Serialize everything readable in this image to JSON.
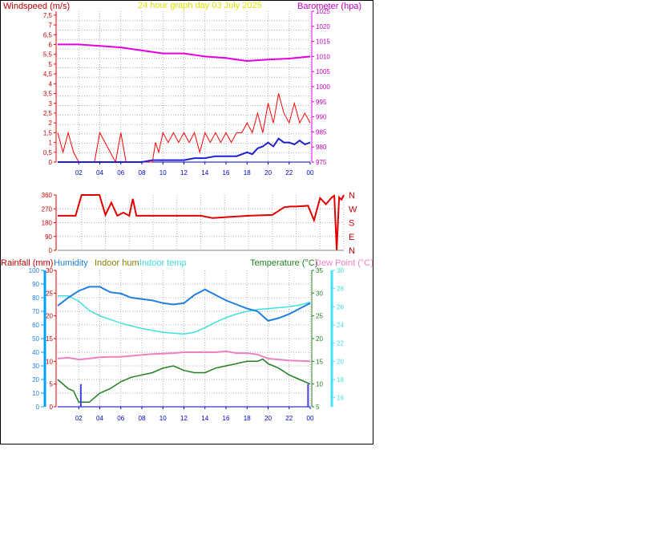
{
  "header": {
    "windspeed_label": "Windspeed (m/s)",
    "title": "24 hour graph day   03 July 2025",
    "barometer_label": "Barometer (hpa)"
  },
  "colors": {
    "wind": "#ff0000",
    "gust": "#ff0000",
    "avgwind": "#2020d0",
    "baro": "#e000e0",
    "title": "#e0e000",
    "direction": "#e00000",
    "humidity": "#2080e0",
    "indoor_hum_label": "#808000",
    "indoor_temp": "#40e0e0",
    "temperature": "#208020",
    "dewpoint": "#f080c0",
    "rain_axis": "#e00000",
    "hum_axis": "#00a0ff",
    "temp_axis": "#208020",
    "dew_axis": "#40e0ff",
    "xaxis": "#0000c0"
  },
  "lower_labels": {
    "rainfall": "Rainfall (mm)",
    "humidity": "Humidity",
    "indoor_hum": "Indoor hum",
    "indoor_temp": "Indoor temp",
    "temperature": "Temperature (°C)",
    "dewpoint": "Dew Point (°C)"
  },
  "chart_data": [
    {
      "type": "line",
      "x_ticks": [
        "02",
        "04",
        "06",
        "08",
        "10",
        "12",
        "14",
        "16",
        "18",
        "20",
        "22",
        "00"
      ],
      "y_left_ticks": [
        "0",
        "0,5",
        "1",
        "1,5",
        "2",
        "2,5",
        "3",
        "3,5",
        "4",
        "4,5",
        "5",
        "5,5",
        "6",
        "6,5",
        "7",
        "7,5"
      ],
      "y_left_range": [
        0,
        7.7
      ],
      "y_right_ticks": [
        "975",
        "980",
        "985",
        "990",
        "995",
        "1000",
        "1005",
        "1010",
        "1015",
        "1020",
        "1025"
      ],
      "y_right_range": [
        975,
        1025
      ],
      "x_range": [
        0,
        24
      ],
      "series": [
        {
          "key": "gust",
          "x": [
            0,
            0.5,
            1,
            1.5,
            2,
            3.5,
            4,
            4.5,
            5,
            5.5,
            6,
            6.5,
            7,
            8,
            9,
            9.3,
            9.6,
            10,
            10.5,
            11,
            11.5,
            12,
            12.5,
            13,
            13.5,
            14,
            14.5,
            15,
            15.5,
            16,
            16.5,
            17,
            17.5,
            18,
            18.5,
            19,
            19.5,
            20,
            20.5,
            21,
            21.5,
            22,
            22.5,
            23,
            23.5,
            24
          ],
          "y": [
            1.5,
            0.5,
            1.5,
            0.5,
            0,
            0,
            1.5,
            1,
            0.5,
            0,
            1.5,
            0,
            0,
            0,
            0,
            1,
            0.5,
            1.5,
            1,
            1.5,
            1,
            1.5,
            1,
            1.5,
            0.5,
            1.5,
            1,
            1.5,
            1,
            1.5,
            1,
            1.5,
            1.5,
            2,
            1.5,
            2.5,
            1.5,
            3,
            2,
            3.5,
            2.5,
            2,
            3,
            2,
            2.5,
            2
          ]
        },
        {
          "key": "avgwind",
          "x": [
            0,
            2,
            4,
            6,
            8,
            9,
            10,
            11,
            12,
            13,
            14,
            15,
            16,
            17,
            18,
            18.5,
            19,
            19.5,
            20,
            20.5,
            21,
            21.5,
            22,
            22.5,
            23,
            23.5,
            24
          ],
          "y": [
            0,
            0,
            0,
            0,
            0,
            0.1,
            0.1,
            0.1,
            0.1,
            0.2,
            0.2,
            0.3,
            0.3,
            0.3,
            0.5,
            0.4,
            0.7,
            0.8,
            1,
            0.8,
            1.2,
            1,
            1,
            0.9,
            1.1,
            0.9,
            1
          ]
        },
        {
          "key": "baro",
          "x": [
            0,
            2,
            4,
            6,
            8,
            10,
            12,
            14,
            16,
            17,
            18,
            20,
            22,
            24
          ],
          "y": [
            1014,
            1014,
            1013.5,
            1013,
            1012,
            1011,
            1011,
            1010,
            1009.5,
            1009,
            1008.5,
            1009,
            1009.3,
            1010
          ]
        }
      ]
    },
    {
      "type": "line",
      "x_ticks": [
        "02",
        "04",
        "06",
        "08",
        "10",
        "12",
        "14",
        "16",
        "18",
        "20",
        "22",
        "00"
      ],
      "y_left_ticks": [
        "0",
        "90",
        "180",
        "270",
        "360"
      ],
      "y_right_ticks": [
        "N",
        "E",
        "S",
        "W",
        "N"
      ],
      "y_range": [
        0,
        360
      ],
      "series": [
        {
          "key": "direction",
          "x": [
            0,
            1.5,
            2,
            3.5,
            4,
            4.5,
            5,
            5.5,
            6,
            6.3,
            6.6,
            7,
            8,
            10,
            12,
            13,
            14,
            16,
            18,
            19,
            19.5,
            20,
            21,
            21.5,
            22,
            22.5,
            23,
            23.2,
            23.4,
            23.6,
            23.8,
            24
          ],
          "y": [
            225,
            225,
            360,
            360,
            230,
            310,
            225,
            245,
            225,
            335,
            225,
            225,
            225,
            225,
            225,
            210,
            215,
            225,
            230,
            280,
            285,
            285,
            290,
            195,
            340,
            300,
            345,
            355,
            2,
            345,
            330,
            360
          ]
        }
      ]
    },
    {
      "type": "line",
      "x_ticks": [
        "02",
        "04",
        "06",
        "08",
        "10",
        "12",
        "14",
        "16",
        "18",
        "20",
        "22",
        "00"
      ],
      "rain_ticks": [
        "0",
        "5",
        "10",
        "15",
        "20",
        "25",
        "30"
      ],
      "rain_range": [
        0,
        30
      ],
      "humidity_ticks": [
        "0",
        "10",
        "20",
        "30",
        "40",
        "50",
        "60",
        "70",
        "80",
        "90",
        "100"
      ],
      "humidity_range": [
        0,
        100
      ],
      "temp_ticks": [
        "5",
        "10",
        "15",
        "20",
        "25",
        "30",
        "35"
      ],
      "temp_range": [
        5,
        35
      ],
      "indoor_temp_ticks": [
        "16",
        "18",
        "20",
        "22",
        "24",
        "26",
        "28",
        "30"
      ],
      "indoor_temp_range": [
        15,
        30
      ],
      "series": [
        {
          "key": "humidity",
          "x": [
            0,
            1,
            2,
            3,
            4,
            5,
            6,
            7,
            8,
            9,
            10,
            11,
            12,
            13,
            14,
            15,
            16,
            17,
            18,
            19,
            20,
            21,
            22,
            23,
            24
          ],
          "y": [
            74,
            80,
            85,
            88,
            88,
            84,
            83,
            80,
            79,
            78,
            76,
            75,
            76,
            82,
            86,
            82,
            78,
            75,
            72,
            70,
            63,
            65,
            68,
            72,
            76
          ]
        },
        {
          "key": "indoor_temp",
          "x": [
            0,
            1,
            2,
            3,
            4,
            5,
            6,
            7,
            8,
            9,
            10,
            11,
            12,
            13,
            14,
            15,
            16,
            17,
            18,
            19,
            20,
            21,
            22,
            23,
            24
          ],
          "y": [
            27.2,
            27.2,
            26.6,
            25.6,
            25,
            24.6,
            24.2,
            23.9,
            23.6,
            23.4,
            23.2,
            23.1,
            23,
            23.2,
            23.7,
            24.3,
            24.8,
            25.2,
            25.5,
            25.7,
            25.8,
            25.9,
            26,
            26.2,
            26.5
          ]
        },
        {
          "key": "temperature",
          "x": [
            0,
            1,
            1.5,
            2,
            3,
            4,
            5,
            6,
            7,
            8,
            9,
            10,
            11,
            12,
            13,
            14,
            15,
            16,
            17,
            18,
            19,
            19.5,
            20,
            21,
            22,
            23,
            24
          ],
          "y": [
            11,
            9,
            8.5,
            6,
            6,
            8,
            9,
            10.5,
            11.5,
            12,
            12.5,
            13.5,
            14,
            13,
            12.5,
            12.5,
            13.5,
            14,
            14.5,
            15,
            15,
            15.5,
            14.5,
            13.5,
            12,
            11,
            10
          ]
        },
        {
          "key": "dewpoint",
          "x": [
            0,
            1,
            2,
            3,
            4,
            5,
            6,
            7,
            8,
            9,
            10,
            11,
            12,
            13,
            14,
            15,
            16,
            17,
            18,
            19,
            20,
            21,
            22,
            23,
            24
          ],
          "y": [
            15.6,
            15.8,
            15.4,
            15.6,
            15.9,
            16,
            16,
            16.2,
            16.4,
            16.6,
            16.7,
            16.8,
            17,
            17,
            17,
            17,
            17.2,
            16.8,
            16.8,
            16.5,
            15.6,
            15.4,
            15.2,
            15.1,
            15
          ]
        },
        {
          "key": "rain",
          "x": [
            2.2,
            23.8
          ],
          "y": [
            2,
            2
          ]
        }
      ]
    }
  ]
}
